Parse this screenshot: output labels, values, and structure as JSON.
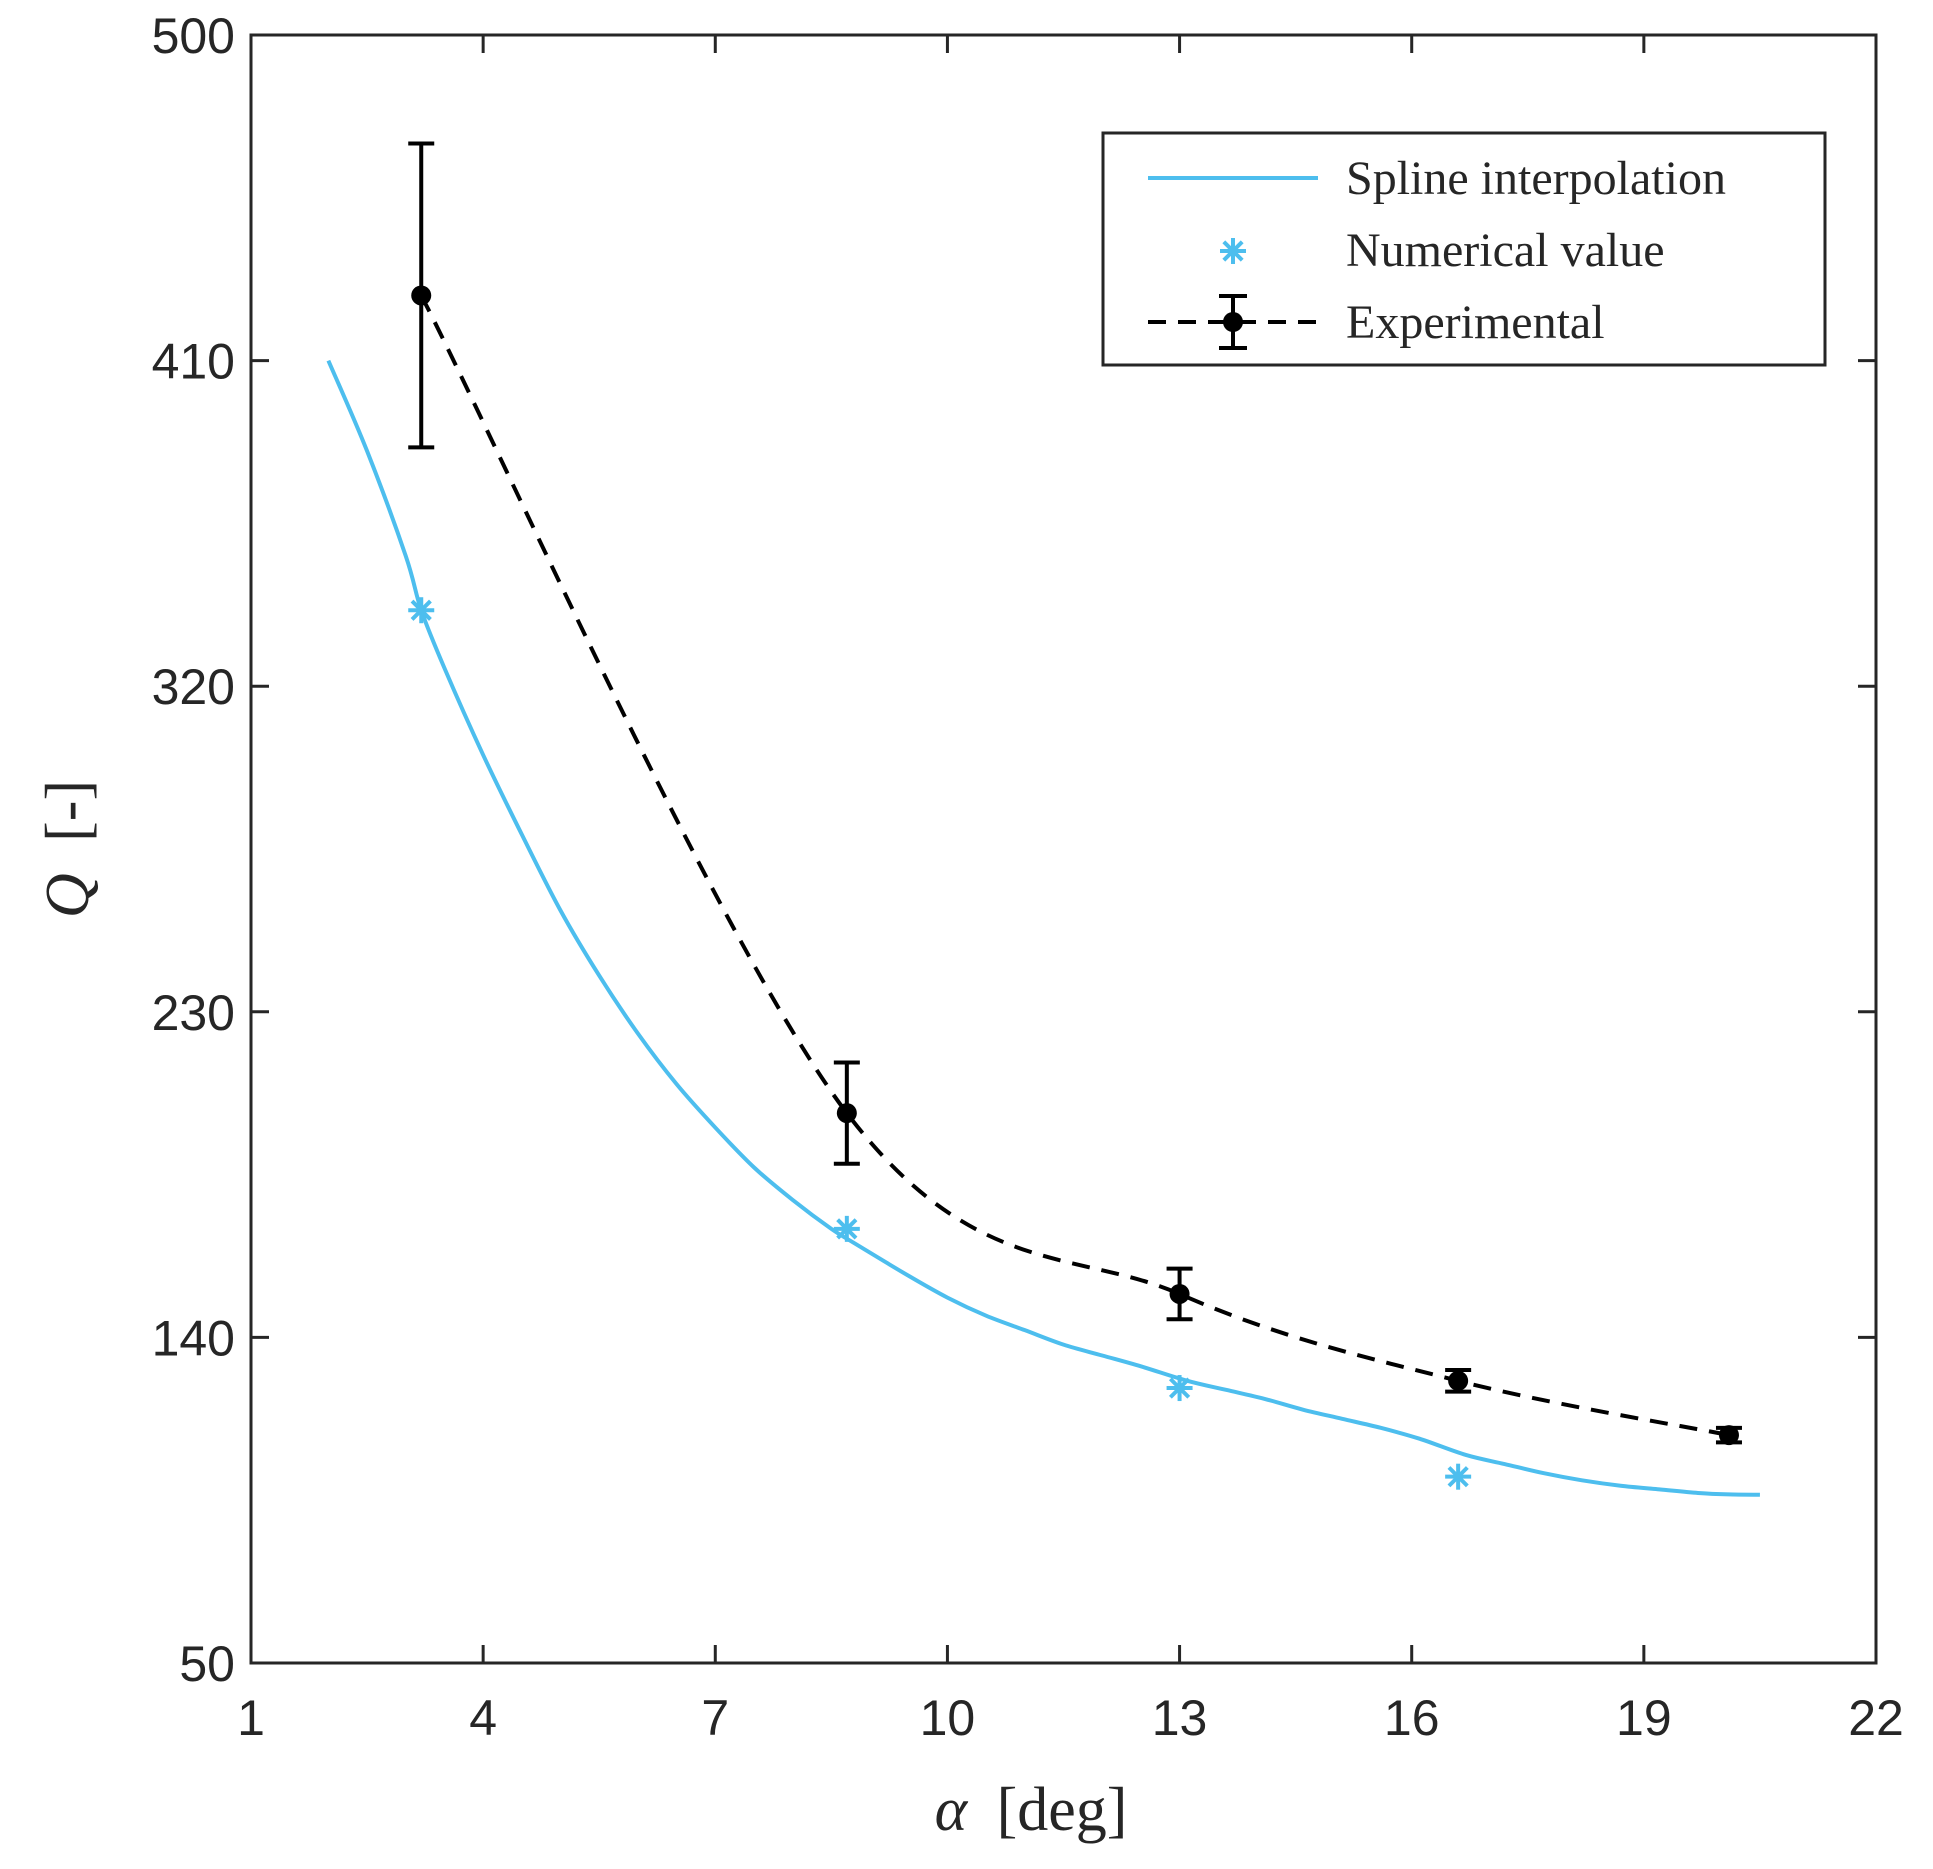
{
  "chart_data": {
    "type": "line",
    "title": "",
    "xlabel": {
      "symbol": "α",
      "unit": "[deg]"
    },
    "ylabel": {
      "symbol": "Q",
      "unit": "[-]"
    },
    "xlim": [
      1,
      22
    ],
    "ylim": [
      50,
      500
    ],
    "xticks": [
      1,
      4,
      7,
      10,
      13,
      16,
      19,
      22
    ],
    "yticks": [
      50,
      140,
      230,
      320,
      410,
      500
    ],
    "legend_position": "top-right",
    "colors": {
      "spline": "#4DBEEE",
      "numerical": "#4DBEEE",
      "experimental": "#000000",
      "axes": "#262626"
    },
    "series": [
      {
        "name": "Spline interpolation",
        "kind": "line",
        "x": [
          2.0,
          2.5,
          3.0,
          3.2,
          3.5,
          4.0,
          4.5,
          5.0,
          5.5,
          6.0,
          6.5,
          7.0,
          7.5,
          8.0,
          8.5,
          8.8,
          9.5,
          10.0,
          10.5,
          11.0,
          11.5,
          12.0,
          12.5,
          13.1,
          13.6,
          14.1,
          14.6,
          15.1,
          15.6,
          16.1,
          16.7,
          17.2,
          17.7,
          18.2,
          18.7,
          19.2,
          19.7,
          20.1,
          20.5
        ],
        "y": [
          410,
          385,
          356,
          341,
          325,
          301,
          279,
          258,
          240,
          224,
          210,
          198,
          187,
          178,
          170,
          166,
          157,
          151,
          146,
          142,
          138,
          135,
          132,
          128,
          125.5,
          123,
          120,
          117.5,
          115,
          112,
          107.5,
          105,
          102.5,
          100.5,
          99,
          98,
          97,
          96.6,
          96.5
        ]
      },
      {
        "name": "Numerical value",
        "kind": "marker",
        "x": [
          3.2,
          8.7,
          13.0,
          16.6
        ],
        "y": [
          341,
          170,
          126,
          101.5
        ]
      },
      {
        "name": "Experimental",
        "kind": "errorbar",
        "x": [
          3.2,
          8.7,
          13.0,
          16.6,
          20.1
        ],
        "y": [
          428,
          202,
          152,
          128,
          113
        ],
        "error": [
          42,
          14,
          7,
          3,
          2
        ]
      }
    ]
  }
}
